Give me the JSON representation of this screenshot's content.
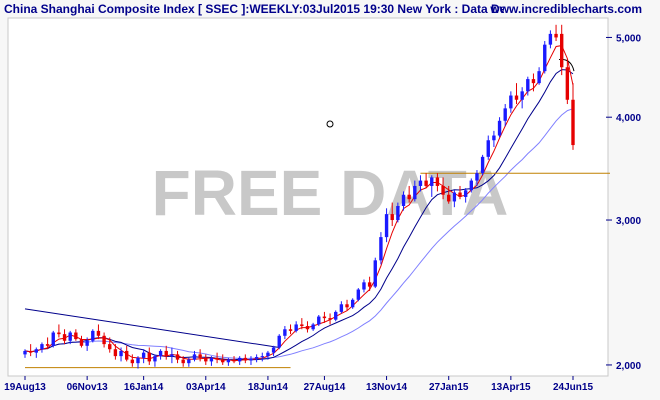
{
  "header": {
    "title": "China Shanghai Composite Index [ SSEC ]:WEEKLY:03Jul2015 19:30 New York : Data Dela...",
    "site": "www.incrediblecharts.com"
  },
  "watermark": "FREE DATA",
  "colors": {
    "up": "#1a1aff",
    "down": "#e60000",
    "ma_fast": "#e60000",
    "ma_mid": "#00008b",
    "ma_slow": "#8080ff",
    "trendline": "#00008b",
    "support": "#c08000",
    "axis": "#00008b"
  },
  "chart_data": {
    "type": "candlestick",
    "title": "China Shanghai Composite Index [ SSEC ]:WEEKLY",
    "y_ticks": [
      {
        "value": 2000,
        "label": "2,000"
      },
      {
        "value": 3000,
        "label": "3,000"
      },
      {
        "value": 4000,
        "label": "4,000"
      },
      {
        "value": 5000,
        "label": "5,000"
      }
    ],
    "y_range": [
      1950,
      5250
    ],
    "y_scale": "log",
    "x_labels": [
      "19Aug13",
      "06Nov13",
      "16Jan14",
      "03Apr14",
      "18Jun14",
      "27Aug14",
      "13Nov14",
      "27Jan15",
      "13Apr15",
      "24Jun15"
    ],
    "x_label_index": [
      0,
      11,
      21,
      32,
      43,
      53,
      64,
      75,
      86,
      97
    ],
    "candles": [
      [
        2060,
        2090,
        2040,
        2080
      ],
      [
        2080,
        2120,
        2050,
        2070
      ],
      [
        2070,
        2100,
        2040,
        2090
      ],
      [
        2090,
        2130,
        2070,
        2120
      ],
      [
        2120,
        2160,
        2090,
        2110
      ],
      [
        2110,
        2200,
        2100,
        2190
      ],
      [
        2190,
        2240,
        2160,
        2180
      ],
      [
        2180,
        2210,
        2120,
        2140
      ],
      [
        2140,
        2200,
        2120,
        2190
      ],
      [
        2190,
        2210,
        2140,
        2150
      ],
      [
        2150,
        2170,
        2100,
        2110
      ],
      [
        2110,
        2160,
        2080,
        2140
      ],
      [
        2140,
        2210,
        2130,
        2200
      ],
      [
        2200,
        2240,
        2150,
        2170
      ],
      [
        2170,
        2190,
        2100,
        2120
      ],
      [
        2120,
        2160,
        2070,
        2090
      ],
      [
        2090,
        2120,
        2030,
        2050
      ],
      [
        2050,
        2100,
        2020,
        2080
      ],
      [
        2080,
        2110,
        2020,
        2030
      ],
      [
        2030,
        2060,
        1990,
        2010
      ],
      [
        2010,
        2050,
        1980,
        2040
      ],
      [
        2040,
        2090,
        2010,
        2070
      ],
      [
        2070,
        2100,
        2000,
        2020
      ],
      [
        2020,
        2060,
        1990,
        2050
      ],
      [
        2050,
        2090,
        2030,
        2080
      ],
      [
        2080,
        2110,
        2030,
        2050
      ],
      [
        2050,
        2100,
        2010,
        2060
      ],
      [
        2060,
        2080,
        2010,
        2030
      ],
      [
        2030,
        2050,
        1990,
        2010
      ],
      [
        2010,
        2040,
        1990,
        2030
      ],
      [
        2030,
        2080,
        2020,
        2060
      ],
      [
        2060,
        2090,
        2020,
        2040
      ],
      [
        2040,
        2060,
        2000,
        2020
      ],
      [
        2020,
        2050,
        1995,
        2040
      ],
      [
        2040,
        2070,
        2010,
        2030
      ],
      [
        2030,
        2060,
        2000,
        2015
      ],
      [
        2015,
        2040,
        1995,
        2030
      ],
      [
        2030,
        2050,
        2010,
        2020
      ],
      [
        2020,
        2050,
        2000,
        2040
      ],
      [
        2040,
        2060,
        2010,
        2025
      ],
      [
        2025,
        2050,
        2000,
        2035
      ],
      [
        2035,
        2060,
        2015,
        2045
      ],
      [
        2045,
        2070,
        2020,
        2050
      ],
      [
        2050,
        2080,
        2030,
        2070
      ],
      [
        2070,
        2110,
        2050,
        2100
      ],
      [
        2100,
        2180,
        2090,
        2170
      ],
      [
        2170,
        2230,
        2150,
        2210
      ],
      [
        2210,
        2240,
        2180,
        2200
      ],
      [
        2200,
        2260,
        2190,
        2240
      ],
      [
        2240,
        2280,
        2210,
        2230
      ],
      [
        2230,
        2260,
        2190,
        2210
      ],
      [
        2210,
        2250,
        2200,
        2240
      ],
      [
        2240,
        2300,
        2230,
        2290
      ],
      [
        2290,
        2320,
        2250,
        2280
      ],
      [
        2280,
        2310,
        2240,
        2270
      ],
      [
        2270,
        2330,
        2260,
        2320
      ],
      [
        2320,
        2390,
        2310,
        2370
      ],
      [
        2370,
        2400,
        2330,
        2350
      ],
      [
        2350,
        2410,
        2340,
        2400
      ],
      [
        2400,
        2480,
        2390,
        2470
      ],
      [
        2470,
        2540,
        2450,
        2520
      ],
      [
        2520,
        2560,
        2460,
        2490
      ],
      [
        2490,
        2700,
        2480,
        2680
      ],
      [
        2680,
        2900,
        2650,
        2860
      ],
      [
        2860,
        3100,
        2820,
        3050
      ],
      [
        3050,
        3150,
        2950,
        3000
      ],
      [
        3000,
        3150,
        2980,
        3120
      ],
      [
        3120,
        3250,
        3080,
        3220
      ],
      [
        3220,
        3300,
        3150,
        3180
      ],
      [
        3180,
        3350,
        3160,
        3300
      ],
      [
        3300,
        3400,
        3250,
        3350
      ],
      [
        3350,
        3420,
        3280,
        3300
      ],
      [
        3300,
        3400,
        3200,
        3380
      ],
      [
        3380,
        3420,
        3250,
        3300
      ],
      [
        3300,
        3380,
        3180,
        3220
      ],
      [
        3220,
        3300,
        3140,
        3160
      ],
      [
        3160,
        3260,
        3110,
        3240
      ],
      [
        3240,
        3300,
        3180,
        3200
      ],
      [
        3200,
        3280,
        3150,
        3260
      ],
      [
        3260,
        3370,
        3240,
        3350
      ],
      [
        3350,
        3450,
        3300,
        3420
      ],
      [
        3420,
        3600,
        3400,
        3580
      ],
      [
        3580,
        3800,
        3550,
        3750
      ],
      [
        3750,
        3850,
        3680,
        3800
      ],
      [
        3800,
        4000,
        3780,
        3960
      ],
      [
        3960,
        4150,
        3900,
        4100
      ],
      [
        4100,
        4300,
        4050,
        4250
      ],
      [
        4250,
        4400,
        4150,
        4200
      ],
      [
        4200,
        4350,
        4100,
        4300
      ],
      [
        4300,
        4480,
        4250,
        4450
      ],
      [
        4450,
        4520,
        4300,
        4400
      ],
      [
        4400,
        4600,
        4380,
        4550
      ],
      [
        4550,
        4950,
        4520,
        4900
      ],
      [
        4900,
        5100,
        4850,
        5050
      ],
      [
        5050,
        5180,
        4950,
        5000
      ],
      [
        5050,
        5180,
        4500,
        4600
      ],
      [
        4600,
        4700,
        4150,
        4200
      ],
      [
        4200,
        4400,
        3650,
        3700
      ]
    ]
  }
}
